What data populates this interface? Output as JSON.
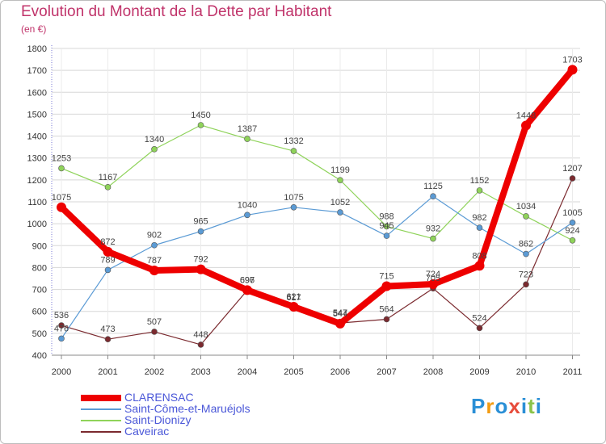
{
  "title": "Evolution du Montant de la Dette par Habitant",
  "subtitle": "(en €)",
  "brand": {
    "text": "Proxiti",
    "letter_colors": [
      "#2a8fd6",
      "#f39c12",
      "#2a8fd6",
      "#e74c3c",
      "#2a8fd6",
      "#8bc34a",
      "#2a8fd6"
    ]
  },
  "colors": {
    "gridline": "#d7d7d7",
    "axis": "#888888",
    "legend_text": "#4a57d8",
    "title": "#c0336a"
  },
  "chart_data": {
    "type": "line",
    "x": [
      "2000",
      "2001",
      "2002",
      "2003",
      "2004",
      "2005",
      "2006",
      "2007",
      "2008",
      "2009",
      "2010",
      "2011"
    ],
    "ylim": [
      400,
      1800
    ],
    "yticks": [
      400,
      500,
      600,
      700,
      800,
      900,
      1000,
      1100,
      1200,
      1300,
      1400,
      1500,
      1600,
      1700,
      1800
    ],
    "grid": true,
    "series": [
      {
        "name": "Caveirac",
        "color": "#7b2a2f",
        "width": 1.2,
        "marker": 3.5,
        "values": [
          536,
          473,
          507,
          448,
          696,
          617,
          547,
          564,
          705,
          524,
          723,
          1207
        ]
      },
      {
        "name": "Saint-Dionizy",
        "color": "#8fd35a",
        "width": 1.2,
        "marker": 3.5,
        "values": [
          1253,
          1167,
          1340,
          1450,
          1387,
          1332,
          1199,
          988,
          932,
          1152,
          1034,
          924
        ]
      },
      {
        "name": "Saint-Côme-et-Maruéjols",
        "color": "#5b9bd5",
        "width": 1.2,
        "marker": 3.5,
        "values": [
          476,
          789,
          902,
          965,
          1040,
          1075,
          1052,
          945,
          1125,
          982,
          862,
          1005
        ]
      },
      {
        "name": "CLARENSAC",
        "color": "#ee0000",
        "width": 8,
        "marker": 6,
        "values": [
          1075,
          872,
          787,
          792,
          697,
          621,
          544,
          715,
          724,
          808,
          1448,
          1703
        ]
      }
    ],
    "legend_order": [
      "CLARENSAC",
      "Saint-Côme-et-Maruéjols",
      "Saint-Dionizy",
      "Caveirac"
    ]
  }
}
